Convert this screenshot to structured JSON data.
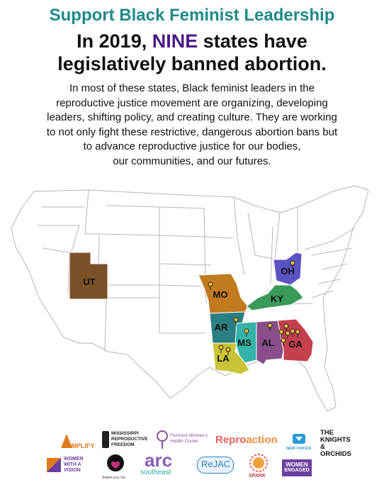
{
  "header": {
    "title": "Support Black Feminist Leadership",
    "headline_pre": "In 2019, ",
    "headline_highlight": "NINE",
    "headline_post": " states have legislatively banned abortion."
  },
  "body": {
    "lines": [
      "In most of these states, Black feminist leaders in the",
      "reproductive justice movement are organizing, developing",
      "leaders, shifting policy, and creating culture. They are working",
      "to not only fight these restrictive, dangerous abortion bans but",
      "to advance reproductive justice for our bodies,",
      "our communities, and our futures."
    ]
  },
  "map": {
    "states": [
      {
        "abbr": "UT",
        "color": "#7b5228"
      },
      {
        "abbr": "MO",
        "color": "#c27a1f"
      },
      {
        "abbr": "OH",
        "color": "#5b52c4"
      },
      {
        "abbr": "KY",
        "color": "#3a9a5a"
      },
      {
        "abbr": "AR",
        "color": "#2b7f82"
      },
      {
        "abbr": "MS",
        "color": "#34b3a8"
      },
      {
        "abbr": "AL",
        "color": "#8a4f8a"
      },
      {
        "abbr": "GA",
        "color": "#c4404f"
      },
      {
        "abbr": "LA",
        "color": "#c9c435"
      }
    ],
    "pin_color": "#f2c230"
  },
  "logos": {
    "amplify": "AMPLIFY",
    "mississippi": "MISSISSIPPI REPRODUCTIVE FREEDOM",
    "fwhc": "Feminist Women's Health Center",
    "repro": "Repro",
    "action": "action",
    "new_voices": "NEW VOICES",
    "knights": "THE KNIGHTS & ORCHIDS",
    "wwav_1": "WOMEN",
    "wwav_2": "WITH A",
    "wwav_3": "VISION",
    "sisterlove": "SisterLove, Inc.",
    "arc": "arc",
    "arc_sub": "southeast",
    "rejac": "ReJAC",
    "spark": "SPARK",
    "women_engaged_1": "WOMEN",
    "women_engaged_2": "ENGAGED"
  }
}
